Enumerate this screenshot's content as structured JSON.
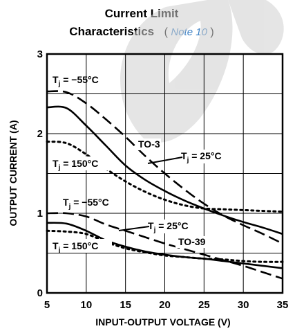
{
  "title": {
    "line1": "Current Limit",
    "line2": "Characteristics",
    "open_paren": "(",
    "note_link": "Note 10",
    "close_paren": ")"
  },
  "colors": {
    "ink": "#000000",
    "link": "#3a7fc4",
    "watermark": "#cfcfcf"
  },
  "chart_data": {
    "type": "line",
    "xlabel": "INPUT-OUTPUT VOLTAGE (V)",
    "ylabel": "OUTPUT CURRENT (A)",
    "xlim": [
      5,
      35
    ],
    "ylim": [
      0,
      3
    ],
    "xticks": [
      5,
      10,
      15,
      20,
      25,
      30,
      35
    ],
    "yticks": [
      0,
      1,
      2,
      3
    ],
    "grid": true,
    "series": [
      {
        "name": "TO-3 Tj = −55°C",
        "style": "dashed",
        "x": [
          5,
          7.5,
          10,
          12.5,
          15,
          17.5,
          20,
          22.5,
          25,
          27.5,
          30,
          32.5,
          35
        ],
        "y": [
          2.53,
          2.52,
          2.38,
          2.18,
          1.96,
          1.72,
          1.5,
          1.3,
          1.12,
          0.97,
          0.85,
          0.74,
          0.62
        ]
      },
      {
        "name": "TO-3 Tj = 25°C",
        "style": "solid",
        "x": [
          5,
          7.5,
          10,
          12.5,
          15,
          17.5,
          20,
          22.5,
          25,
          27.5,
          30,
          32.5,
          35
        ],
        "y": [
          2.33,
          2.32,
          2.1,
          1.85,
          1.6,
          1.42,
          1.28,
          1.16,
          1.06,
          0.97,
          0.89,
          0.82,
          0.74
        ]
      },
      {
        "name": "TO-3 Tj = 150°C",
        "style": "dotted",
        "x": [
          5,
          7.5,
          10,
          12.5,
          15,
          17.5,
          20,
          22.5,
          25,
          27.5,
          30,
          32.5,
          35
        ],
        "y": [
          1.9,
          1.88,
          1.74,
          1.56,
          1.4,
          1.27,
          1.17,
          1.1,
          1.06,
          1.05,
          1.04,
          1.03,
          1.02
        ]
      },
      {
        "name": "TO-39 Tj = −55°C",
        "style": "dashed",
        "x": [
          5,
          7.5,
          10,
          12.5,
          15,
          17.5,
          20,
          22.5,
          25,
          27.5,
          30,
          32.5,
          35
        ],
        "y": [
          1.0,
          1.0,
          0.96,
          0.86,
          0.78,
          0.7,
          0.62,
          0.55,
          0.48,
          0.41,
          0.34,
          0.26,
          0.18
        ]
      },
      {
        "name": "TO-39 Tj = 25°C",
        "style": "solid",
        "x": [
          5,
          7.5,
          10,
          12.5,
          15,
          17.5,
          20,
          22.5,
          25,
          27.5,
          30,
          32.5,
          35
        ],
        "y": [
          0.88,
          0.87,
          0.78,
          0.66,
          0.58,
          0.52,
          0.48,
          0.45,
          0.43,
          0.4,
          0.37,
          0.34,
          0.31
        ]
      },
      {
        "name": "TO-39 Tj = 150°C",
        "style": "dotted",
        "x": [
          5,
          7.5,
          10,
          12.5,
          15,
          17.5,
          20,
          22.5,
          25,
          27.5,
          30,
          32.5,
          35
        ],
        "y": [
          0.78,
          0.77,
          0.74,
          0.64,
          0.56,
          0.51,
          0.47,
          0.45,
          0.43,
          0.42,
          0.4,
          0.39,
          0.39
        ]
      }
    ],
    "annotations": [
      {
        "id": "a1",
        "text": "T",
        "sub": "j",
        "rest": " = −55°C"
      },
      {
        "id": "a2",
        "text": "T",
        "sub": "j",
        "rest": " = 150°C"
      },
      {
        "id": "a3",
        "text": "TO-3",
        "sub": "",
        "rest": ""
      },
      {
        "id": "a4",
        "text": "T",
        "sub": "j",
        "rest": " = 25°C"
      },
      {
        "id": "a5",
        "text": "T",
        "sub": "j",
        "rest": " = −55°C"
      },
      {
        "id": "a6",
        "text": "T",
        "sub": "j",
        "rest": " = 25°C"
      },
      {
        "id": "a7",
        "text": "TO-39",
        "sub": "",
        "rest": ""
      },
      {
        "id": "a8",
        "text": "T",
        "sub": "j",
        "rest": " = 150°C"
      }
    ]
  }
}
